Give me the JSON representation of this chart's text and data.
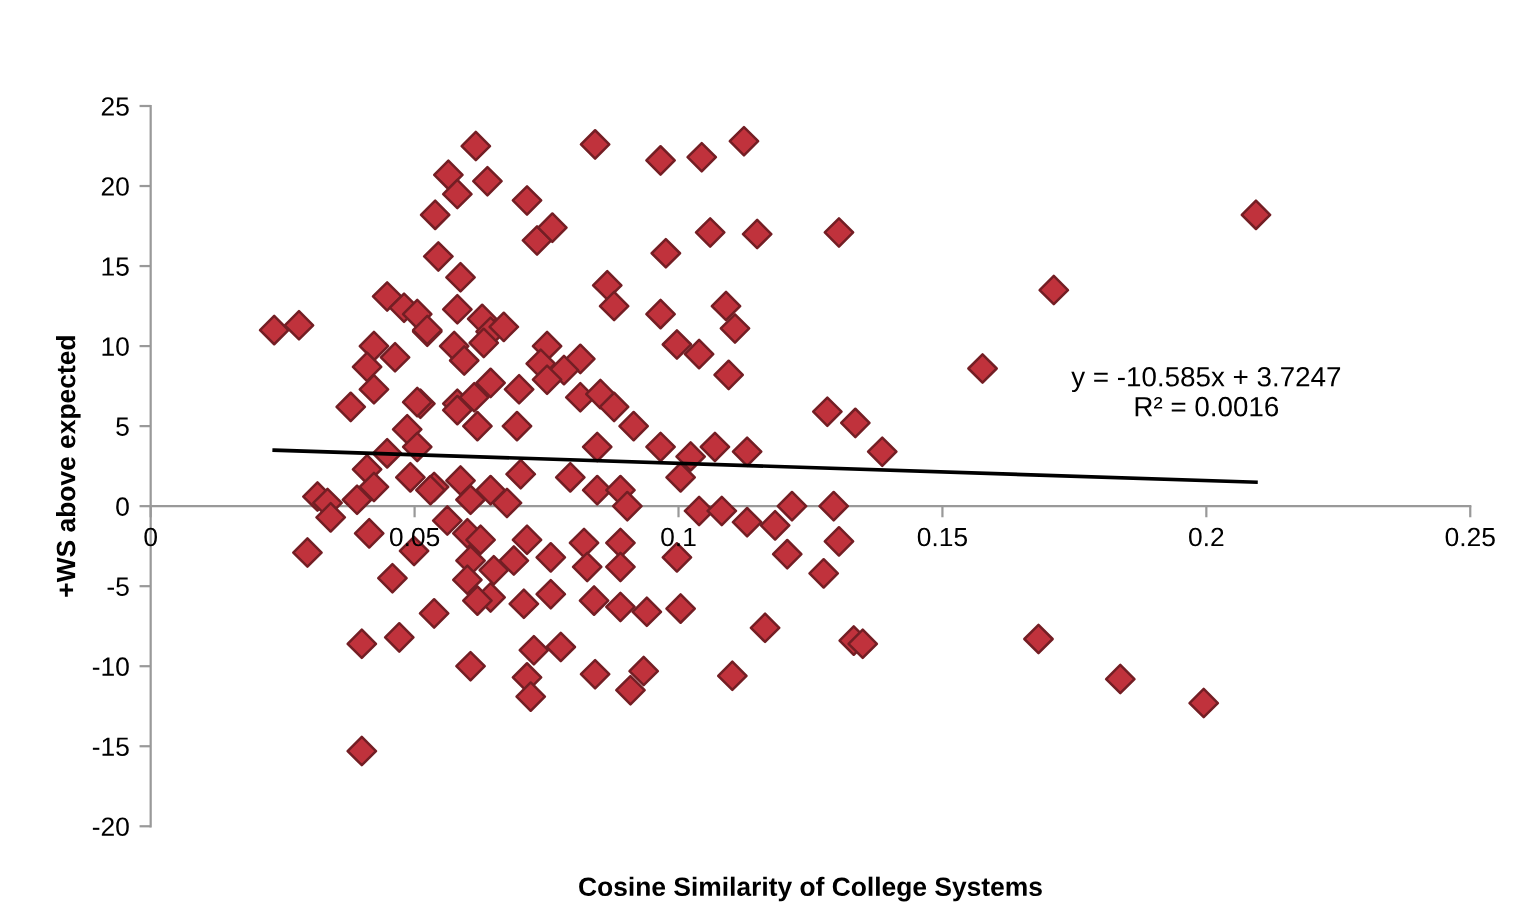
{
  "chart_data": {
    "type": "scatter",
    "xlabel": "Cosine Similarity of College Systems",
    "ylabel": "+WS above expected",
    "annotations": [
      "y = -10.585x + 3.7247\nR² = 0.0016"
    ],
    "xlim": [
      0,
      0.25
    ],
    "ylim": [
      -20,
      25
    ],
    "xticks": [
      0,
      0.05,
      0.1,
      0.15,
      0.2,
      0.25
    ],
    "yticks": [
      -20,
      -15,
      -10,
      -5,
      0,
      5,
      10,
      15,
      20,
      25
    ],
    "grid": false,
    "legend": false,
    "series": [
      {
        "color": "#c0323c",
        "marker": "diamond",
        "x": [
          0.0966,
          0.1044,
          0.1124,
          0.0976,
          0.106,
          0.1149,
          0.1304,
          0.0966,
          0.109,
          0.1107,
          0.0997,
          0.1039,
          0.1095,
          0.1576,
          0.1282,
          0.1335,
          0.1386,
          0.0966,
          0.1023,
          0.1069,
          0.113,
          0.1004,
          0.1039,
          0.1082,
          0.113,
          0.1183,
          0.1215,
          0.1294,
          0.1206,
          0.1304,
          0.1275,
          0.0997,
          0.1004,
          0.1164,
          0.1332,
          0.1349,
          0.1102,
          0.1711,
          0.2094,
          0.1682,
          0.1837,
          0.1995,
          0.0616,
          0.0842,
          0.0564,
          0.0638,
          0.0581,
          0.0713,
          0.0539,
          0.0732,
          0.0761,
          0.0545,
          0.0587,
          0.0865,
          0.0878,
          0.0581,
          0.0628,
          0.0524,
          0.0644,
          0.0669,
          0.0575,
          0.0594,
          0.0631,
          0.0751,
          0.0814,
          0.0739,
          0.0783,
          0.0751,
          0.0644,
          0.0698,
          0.0581,
          0.0613,
          0.0814,
          0.0852,
          0.0878,
          0.0511,
          0.0581,
          0.0619,
          0.0694,
          0.0846,
          0.0915,
          0.0537,
          0.0587,
          0.0644,
          0.0675,
          0.0701,
          0.0795,
          0.0846,
          0.089,
          0.0903,
          0.0606,
          0.0562,
          0.06,
          0.0625,
          0.0713,
          0.0758,
          0.0821,
          0.089,
          0.0827,
          0.089,
          0.0688,
          0.065,
          0.0606,
          0.06,
          0.0644,
          0.0619,
          0.0707,
          0.0758,
          0.084,
          0.089,
          0.094,
          0.0537,
          0.0606,
          0.0726,
          0.0777,
          0.0713,
          0.072,
          0.0842,
          0.0909,
          0.0934,
          0.0234,
          0.0281,
          0.0448,
          0.048,
          0.0505,
          0.0524,
          0.0423,
          0.0463,
          0.041,
          0.0423,
          0.0505,
          0.0379,
          0.0486,
          0.0505,
          0.0448,
          0.041,
          0.0492,
          0.0423,
          0.053,
          0.0316,
          0.0335,
          0.0341,
          0.0391,
          0.0414,
          0.0499,
          0.0297,
          0.0458,
          0.04,
          0.0471,
          0.04
        ],
        "values": [
          21.6,
          21.8,
          22.8,
          15.8,
          17.1,
          17.0,
          17.1,
          12.0,
          12.5,
          11.1,
          10.1,
          9.5,
          8.2,
          8.6,
          5.9,
          5.2,
          3.4,
          3.7,
          3.1,
          3.7,
          3.4,
          1.8,
          -0.3,
          -0.3,
          -1.0,
          -1.2,
          0.0,
          0.0,
          -3.0,
          -2.2,
          -4.2,
          -3.2,
          -6.4,
          -7.6,
          -8.4,
          -8.6,
          -10.6,
          13.5,
          18.2,
          -8.3,
          -10.8,
          -12.3,
          22.5,
          22.6,
          20.7,
          20.3,
          19.5,
          19.1,
          18.2,
          16.6,
          17.4,
          15.6,
          14.3,
          13.8,
          12.5,
          12.3,
          11.7,
          10.9,
          10.9,
          11.2,
          10.0,
          9.1,
          10.2,
          10.0,
          9.2,
          8.9,
          8.5,
          7.9,
          7.7,
          7.3,
          6.4,
          6.8,
          6.8,
          7.0,
          6.2,
          6.4,
          6.0,
          5.0,
          5.0,
          3.7,
          5.0,
          1.2,
          1.6,
          1.0,
          0.2,
          2.0,
          1.8,
          1.0,
          1.0,
          0.0,
          0.4,
          -0.9,
          -1.7,
          -2.1,
          -2.1,
          -3.2,
          -2.3,
          -2.3,
          -3.8,
          -3.8,
          -3.4,
          -4.0,
          -3.4,
          -4.6,
          -5.7,
          -5.9,
          -6.1,
          -5.5,
          -5.9,
          -6.3,
          -6.6,
          -6.7,
          -10.0,
          -9.0,
          -8.8,
          -10.7,
          -11.9,
          -10.5,
          -11.5,
          -10.3,
          11.0,
          11.3,
          13.1,
          12.4,
          12.0,
          11.0,
          10.0,
          9.3,
          8.7,
          7.3,
          6.5,
          6.2,
          4.8,
          3.7,
          3.3,
          2.3,
          1.8,
          1.2,
          1.0,
          0.6,
          0.2,
          -0.7,
          0.4,
          -1.7,
          -2.8,
          -2.9,
          -4.5,
          -8.6,
          -8.2,
          -15.3
        ]
      },
      {
        "type": "line",
        "color": "#000000",
        "line_style": "solid",
        "x": [
          0.0234,
          0.2094
        ],
        "values": [
          3.5,
          1.5
        ]
      }
    ]
  }
}
